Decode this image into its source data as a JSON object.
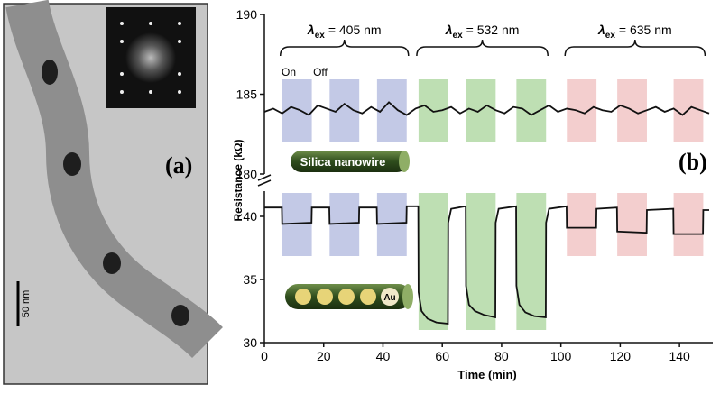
{
  "panel_a": {
    "label": "(a)",
    "scale_bar": "50 nm"
  },
  "panel_b": {
    "label": "(b)"
  },
  "diagram": {
    "silica": "Silica nanowire",
    "au": "Au"
  },
  "chart_data": [
    {
      "type": "line",
      "ylim": [
        180,
        190
      ],
      "yticks": [
        180,
        185,
        190
      ],
      "series": [
        {
          "color": "#111111",
          "x": [
            0,
            3,
            6,
            9,
            12,
            15,
            18,
            21,
            24,
            27,
            30,
            33,
            36,
            39,
            42,
            45,
            48,
            51,
            54,
            57,
            60,
            63,
            66,
            69,
            72,
            75,
            78,
            81,
            84,
            87,
            90,
            93,
            96,
            99,
            102,
            105,
            108,
            111,
            114,
            117,
            120,
            123,
            126,
            129,
            132,
            135,
            138,
            141,
            144,
            147,
            150
          ],
          "values": [
            183.9,
            184.1,
            183.8,
            184.2,
            184.0,
            183.7,
            184.3,
            184.1,
            183.9,
            184.4,
            184.0,
            183.8,
            184.2,
            183.9,
            184.5,
            184.0,
            183.7,
            184.1,
            184.3,
            183.9,
            184.0,
            184.2,
            183.8,
            184.1,
            183.9,
            184.3,
            184.0,
            183.8,
            184.2,
            184.1,
            183.7,
            184.0,
            184.3,
            183.9,
            184.1,
            184.0,
            183.8,
            184.2,
            184.0,
            183.9,
            184.3,
            184.1,
            183.8,
            184.0,
            184.2,
            183.9,
            184.1,
            183.7,
            184.2,
            184.0,
            183.8
          ]
        }
      ]
    },
    {
      "type": "line",
      "xlabel": "Time (min)",
      "ylabel": "Resistance (kΩ)",
      "xlim": [
        0,
        150
      ],
      "xticks": [
        0,
        20,
        40,
        60,
        80,
        100,
        120,
        140
      ],
      "ylim": [
        30,
        42
      ],
      "yticks": [
        30,
        35,
        40
      ],
      "on_label": "On",
      "off_label": "Off",
      "shaded_regions": [
        {
          "start": 6,
          "end": 16,
          "color": "#b9c0e2"
        },
        {
          "start": 22,
          "end": 32,
          "color": "#b9c0e2"
        },
        {
          "start": 38,
          "end": 48,
          "color": "#b9c0e2"
        },
        {
          "start": 52,
          "end": 62,
          "color": "#b3d9a6"
        },
        {
          "start": 68,
          "end": 78,
          "color": "#b3d9a6"
        },
        {
          "start": 85,
          "end": 95,
          "color": "#b3d9a6"
        },
        {
          "start": 102,
          "end": 112,
          "color": "#f1c5c6"
        },
        {
          "start": 119,
          "end": 129,
          "color": "#f1c5c6"
        },
        {
          "start": 138,
          "end": 148,
          "color": "#f1c5c6"
        }
      ],
      "annotations": [
        {
          "symbol": "λ",
          "sub": "ex",
          "text": "= 405 nm"
        },
        {
          "symbol": "λ",
          "sub": "ex",
          "text": "= 532 nm"
        },
        {
          "symbol": "λ",
          "sub": "ex",
          "text": "= 635 nm"
        }
      ],
      "series": [
        {
          "color": "#111111",
          "x": [
            0,
            5.9,
            6,
            15.9,
            16,
            21.9,
            22,
            31.9,
            32,
            37.9,
            38,
            47.9,
            48,
            51.9,
            52,
            53,
            55,
            58,
            61.9,
            62,
            63,
            67.9,
            68,
            69,
            71,
            74,
            77.9,
            78,
            79,
            84.9,
            85,
            86,
            88,
            91,
            94.9,
            95,
            96,
            101.9,
            102,
            111.9,
            112,
            118.9,
            119,
            128.9,
            129,
            137.9,
            138,
            147.9,
            148,
            150
          ],
          "values": [
            40.7,
            40.7,
            39.4,
            39.5,
            40.7,
            40.7,
            39.4,
            39.5,
            40.7,
            40.7,
            39.4,
            39.5,
            40.8,
            40.8,
            34,
            32.5,
            31.9,
            31.6,
            31.5,
            39.5,
            40.6,
            40.8,
            34.5,
            33,
            32.5,
            32.2,
            32,
            39.5,
            40.6,
            40.8,
            34.5,
            33,
            32.4,
            32.1,
            32,
            39.5,
            40.6,
            40.8,
            39.1,
            39.1,
            40.6,
            40.7,
            38.8,
            38.7,
            40.5,
            40.6,
            38.6,
            38.6,
            40.5,
            40.5
          ]
        }
      ]
    }
  ]
}
